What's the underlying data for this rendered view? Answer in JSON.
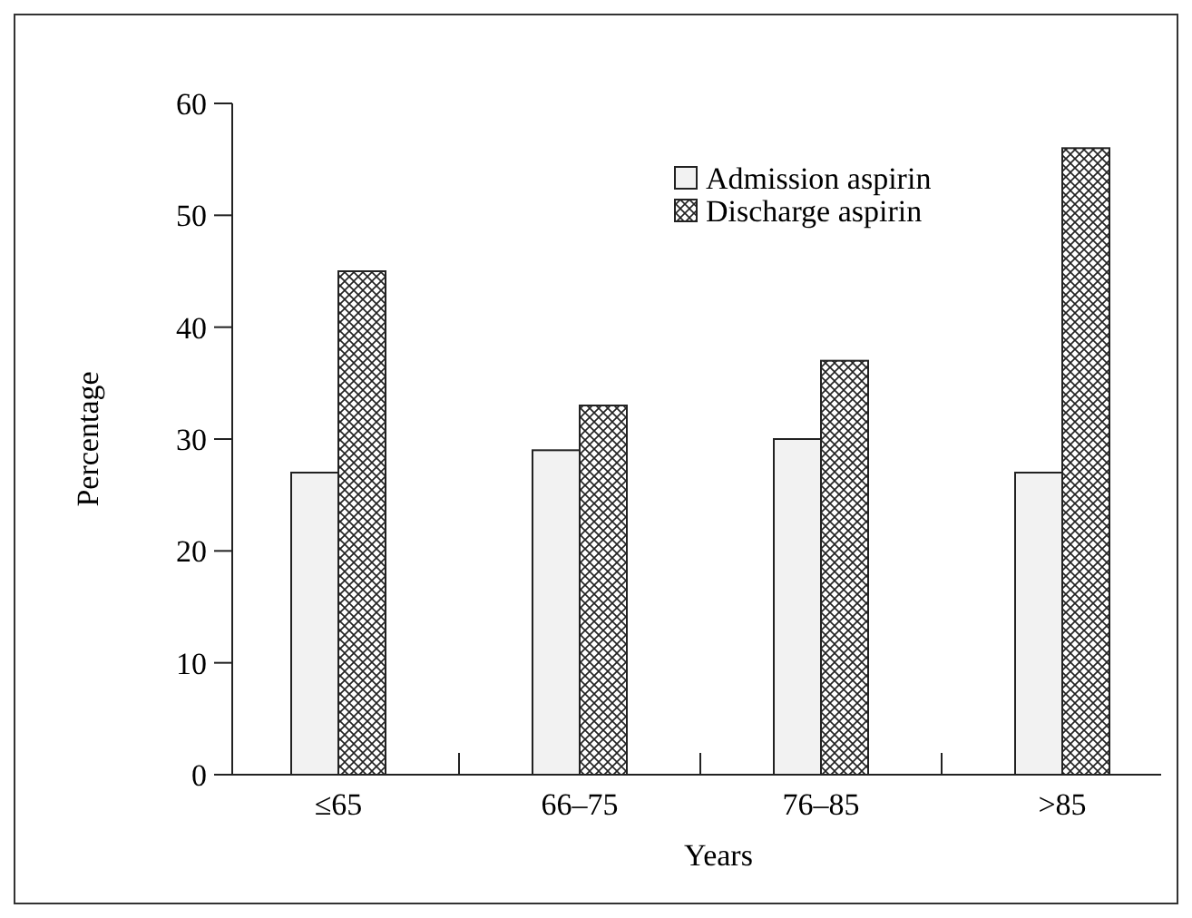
{
  "chart_data": {
    "type": "bar",
    "xlabel": "Years",
    "ylabel": "Percentage",
    "categories": [
      "≤65",
      "66–75",
      "76–85",
      ">85"
    ],
    "series": [
      {
        "name": "Admission aspirin",
        "color": "#f2f2f2",
        "values": [
          27,
          29,
          30,
          27
        ]
      },
      {
        "name": "Discharge aspirin",
        "color": "#222222",
        "values": [
          45,
          33,
          37,
          56
        ]
      }
    ],
    "ylim": [
      0,
      60
    ],
    "yticks": [
      0,
      10,
      20,
      30,
      40,
      50,
      60
    ],
    "grid": false,
    "legend": "top right"
  }
}
